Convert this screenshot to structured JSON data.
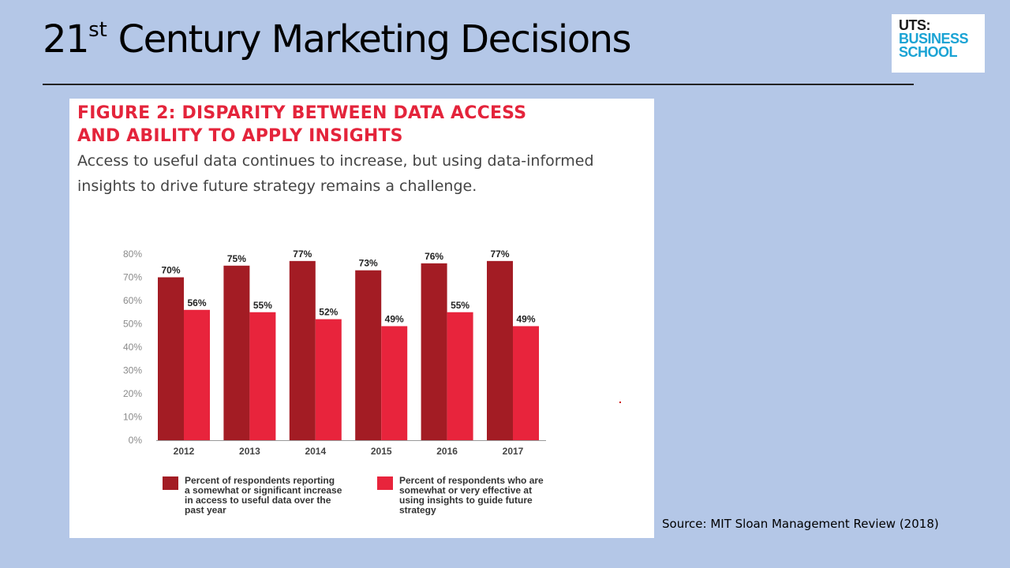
{
  "slide": {
    "title_prefix": "21",
    "title_sup": "st",
    "title_rest": " Century Marketing Decisions",
    "source": "Source: MIT Sloan Management Review (2018)"
  },
  "logo": {
    "line1": "UTS:",
    "line2": "BUSINESS",
    "line3": "SCHOOL"
  },
  "figure": {
    "title_line1": "FIGURE 2: DISPARITY BETWEEN DATA ACCESS",
    "title_line2": "AND ABILITY TO APPLY INSIGHTS",
    "subtitle_line1": "Access to useful data continues to increase, but using data-informed",
    "subtitle_line2": "insights to drive future strategy remains a challenge."
  },
  "chart_data": {
    "type": "bar",
    "categories": [
      "2012",
      "2013",
      "2014",
      "2015",
      "2016",
      "2017"
    ],
    "series": [
      {
        "name_lines": [
          "Percent of respondents reporting",
          "a somewhat or significant increase",
          "in access to useful data over the",
          "past year"
        ],
        "color": "#a31c24",
        "values": [
          70,
          75,
          77,
          73,
          76,
          77
        ],
        "labels": [
          "70%",
          "75%",
          "77%",
          "73%",
          "76%",
          "77%"
        ]
      },
      {
        "name_lines": [
          "Percent of respondents who are",
          "somewhat or very effective at",
          "using insights to guide future",
          "strategy"
        ],
        "color": "#e8243c",
        "values": [
          56,
          55,
          52,
          49,
          55,
          49
        ],
        "labels": [
          "56%",
          "55%",
          "52%",
          "49%",
          "55%",
          "49%"
        ]
      }
    ],
    "ylim": [
      0,
      80
    ],
    "yticks": [
      "0%",
      "10%",
      "20%",
      "30%",
      "40%",
      "50%",
      "60%",
      "70%",
      "80%"
    ],
    "grid": false,
    "legend_position": "bottom"
  }
}
